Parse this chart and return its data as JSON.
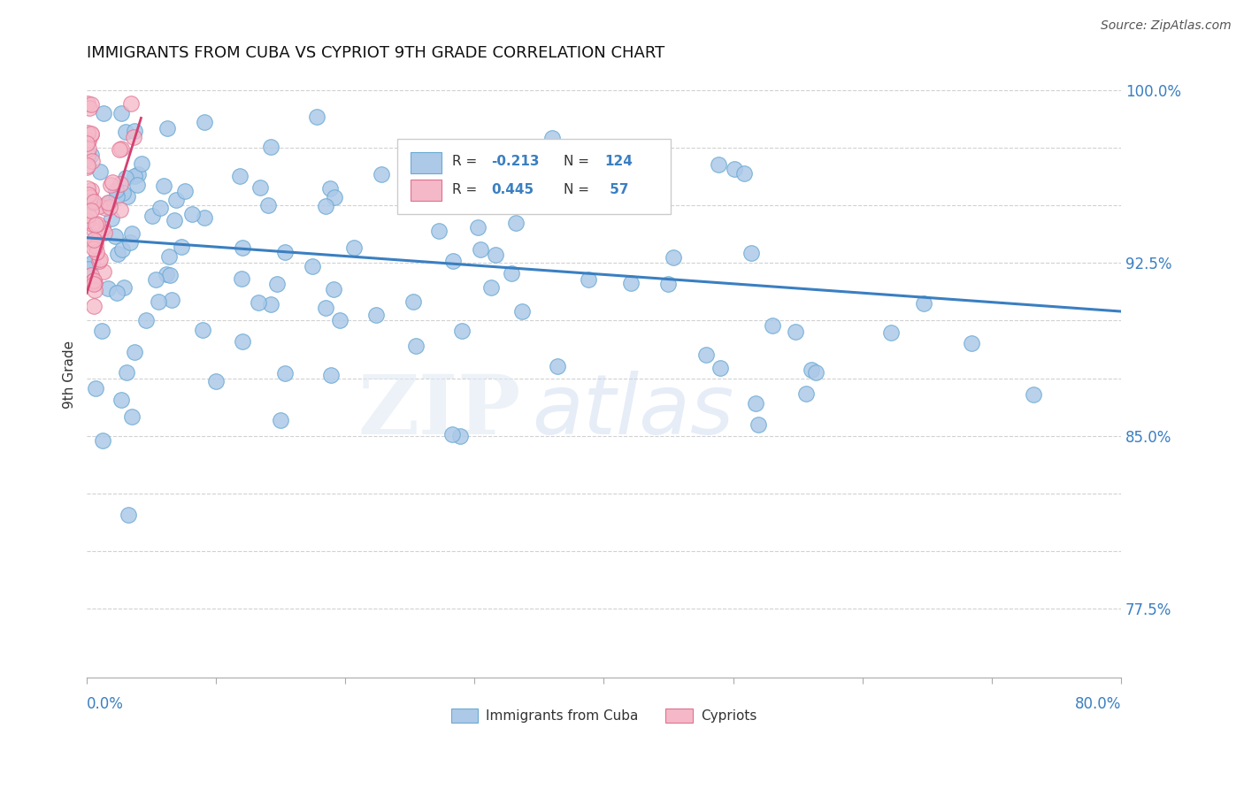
{
  "title": "IMMIGRANTS FROM CUBA VS CYPRIOT 9TH GRADE CORRELATION CHART",
  "source": "Source: ZipAtlas.com",
  "ylabel": "9th Grade",
  "xmin": 0.0,
  "xmax": 0.8,
  "ymin": 0.745,
  "ymax": 1.008,
  "ytick_positions": [
    0.775,
    0.8,
    0.825,
    0.85,
    0.875,
    0.9,
    0.925,
    0.95,
    0.975,
    1.0
  ],
  "right_ytick_labels": {
    "0.775": "77.5%",
    "0.85": "85.0%",
    "0.925": "92.5%",
    "1.0": "100.0%"
  },
  "blue_color": "#adc9e8",
  "blue_edge_color": "#6aaad4",
  "pink_color": "#f5b8c8",
  "pink_edge_color": "#e07090",
  "blue_line_color": "#3a7fc1",
  "pink_line_color": "#d44070",
  "watermark_zip": "ZIP",
  "watermark_atlas": "atlas",
  "legend_R_blue": "-0.213",
  "legend_N_blue": "124",
  "legend_R_pink": "0.445",
  "legend_N_pink": "57",
  "grid_color": "#cccccc",
  "text_color_blue": "#3a7fc1",
  "text_color_dark": "#333333"
}
